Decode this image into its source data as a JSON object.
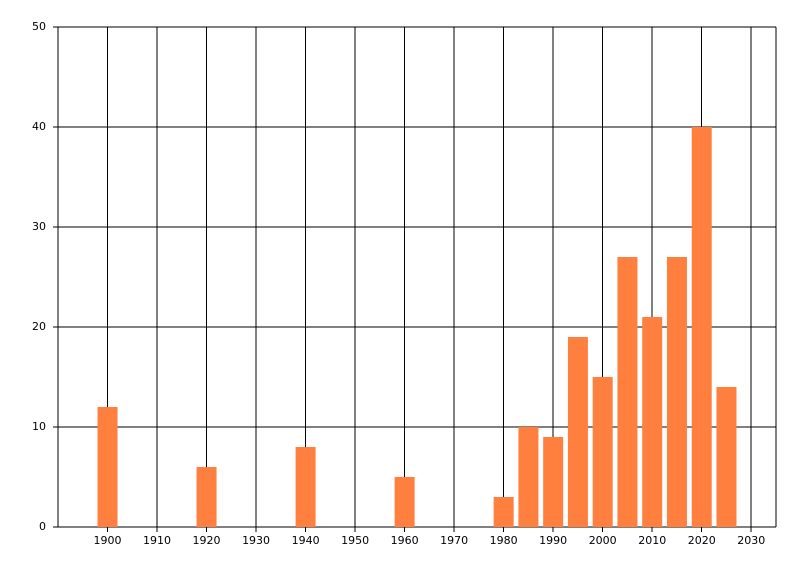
{
  "chart_data": {
    "type": "bar",
    "x": [
      1900,
      1920,
      1940,
      1960,
      1980,
      1985,
      1990,
      1995,
      2000,
      2005,
      2010,
      2015,
      2020,
      2025
    ],
    "values": [
      12,
      6,
      8,
      5,
      3,
      10,
      9,
      19,
      15,
      27,
      21,
      27,
      40,
      14
    ],
    "color": "#ff7f3f",
    "xlim": [
      1890,
      2035
    ],
    "xticks": [
      1900,
      1910,
      1920,
      1930,
      1940,
      1950,
      1960,
      1970,
      1980,
      1990,
      2000,
      2010,
      2020,
      2030
    ],
    "ylim": [
      0,
      50
    ],
    "yticks": [
      0,
      10,
      20,
      30,
      40,
      50
    ],
    "grid": true
  }
}
